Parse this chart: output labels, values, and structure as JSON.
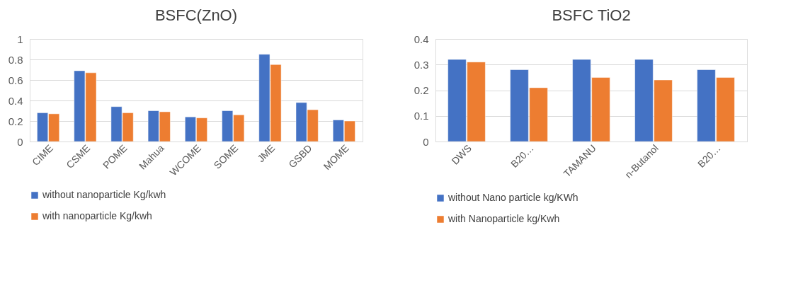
{
  "chart_data": [
    {
      "type": "bar",
      "title": "BSFC(ZnO)",
      "categories": [
        "CIME",
        "CSME",
        "POME",
        "Mahua",
        "WCOME",
        "SOME",
        "JME",
        "GSBD",
        "MOME"
      ],
      "series": [
        {
          "name": "without nanoparticle Kg/kwh",
          "color": "#4472c4",
          "values": [
            0.28,
            0.69,
            0.34,
            0.3,
            0.24,
            0.3,
            0.85,
            0.38,
            0.21
          ]
        },
        {
          "name": "with nanoparticle Kg/kwh",
          "color": "#ed7d31",
          "values": [
            0.27,
            0.67,
            0.28,
            0.29,
            0.23,
            0.26,
            0.75,
            0.31,
            0.2
          ]
        }
      ],
      "ylim": [
        0,
        1
      ],
      "yticks": [
        0,
        0.2,
        0.4,
        0.6,
        0.8,
        1
      ],
      "grid": "y",
      "legend": "bottom"
    },
    {
      "type": "bar",
      "title": "BSFC TiO2",
      "categories": [
        "DWS",
        "B20…",
        "TAMANU",
        "n-Butanol",
        "B20…"
      ],
      "series": [
        {
          "name": "without Nano particle kg/KWh",
          "color": "#4472c4",
          "values": [
            0.32,
            0.28,
            0.32,
            0.32,
            0.28
          ]
        },
        {
          "name": "with Nanoparticle kg/Kwh",
          "color": "#ed7d31",
          "values": [
            0.31,
            0.21,
            0.25,
            0.24,
            0.25
          ]
        }
      ],
      "ylim": [
        0,
        0.4
      ],
      "yticks": [
        0,
        0.1,
        0.2,
        0.3,
        0.4
      ],
      "grid": "y",
      "legend": "bottom"
    }
  ]
}
